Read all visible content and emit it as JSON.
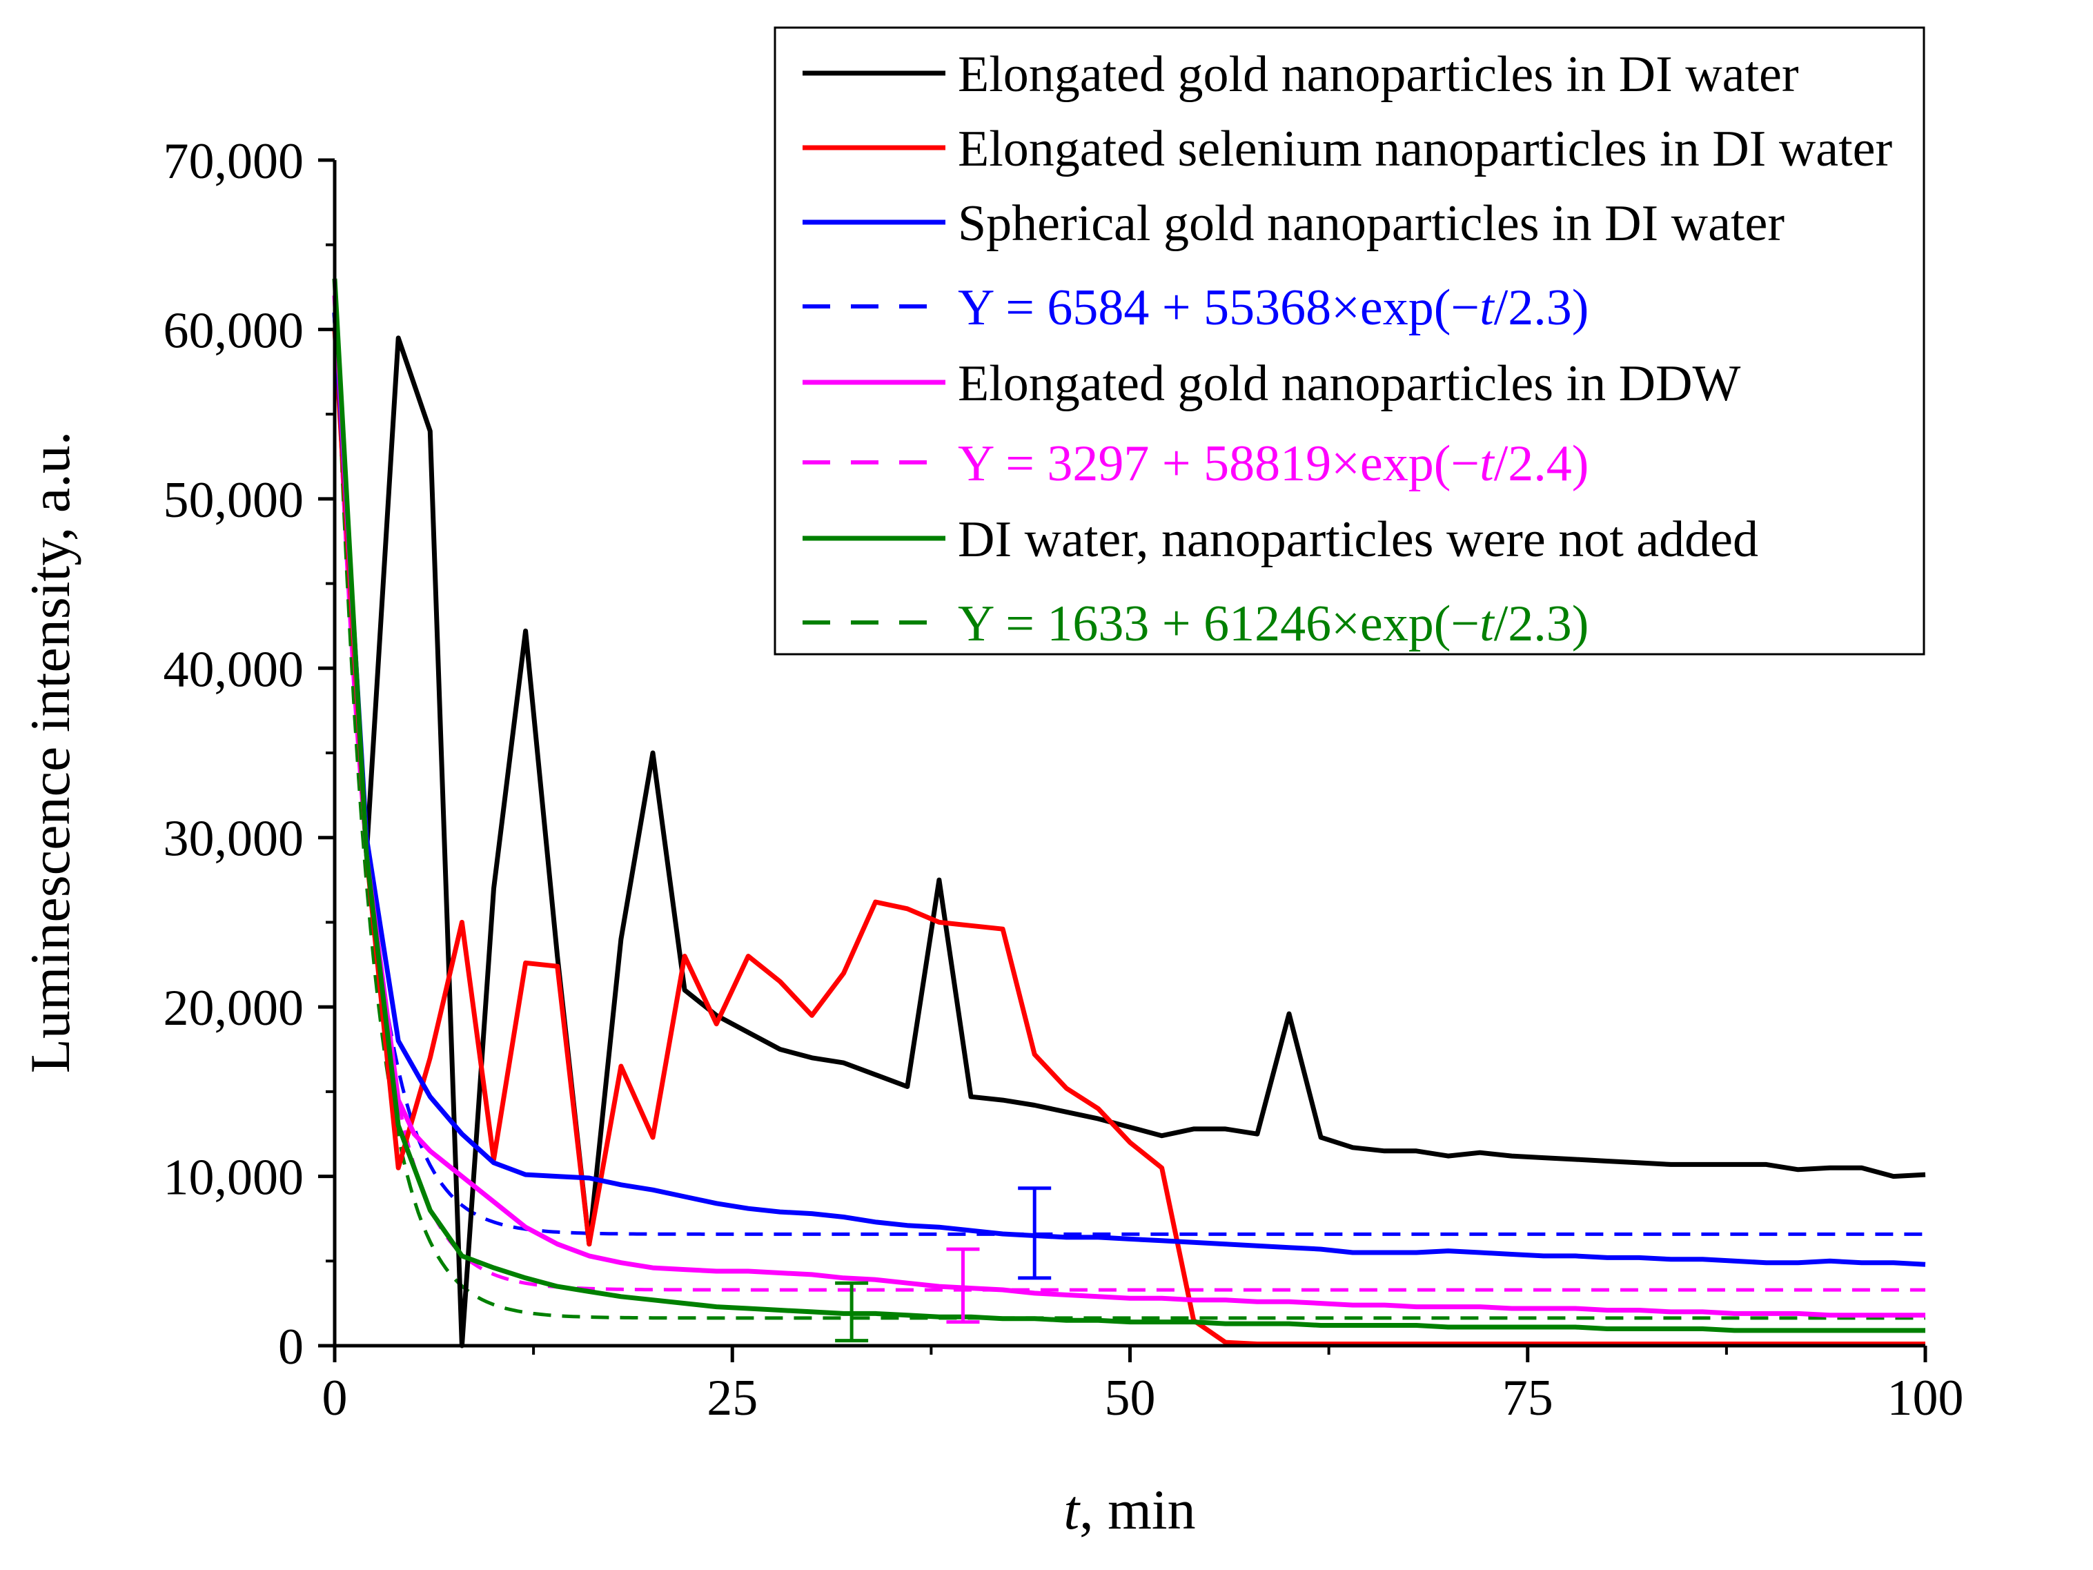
{
  "chart_data": {
    "type": "line",
    "title": "",
    "xlabel_italic": "t",
    "xlabel_rest": ", min",
    "ylabel": "Luminescence intensity, a.u.",
    "xlim": [
      0,
      100
    ],
    "ylim": [
      0,
      70000
    ],
    "xticks": [
      0,
      25,
      50,
      75,
      100
    ],
    "xtick_labels": [
      "0",
      "25",
      "50",
      "75",
      "100"
    ],
    "yticks": [
      0,
      10000,
      20000,
      30000,
      40000,
      50000,
      60000,
      70000
    ],
    "ytick_labels": [
      "0",
      "10,000",
      "20,000",
      "30,000",
      "40,000",
      "50,000",
      "60,000",
      "70,000"
    ],
    "grid": false,
    "legend_position": "top-right",
    "series": [
      {
        "name": "Elongated gold nanoparticles in DI water",
        "color": "#000000",
        "style": "solid",
        "x": [
          0,
          2,
          4,
          6,
          8,
          10,
          12,
          14,
          16,
          18,
          20,
          22,
          24,
          26,
          28,
          30,
          32,
          34,
          36,
          38,
          40,
          42,
          44,
          46,
          48,
          50,
          52,
          54,
          56,
          58,
          60,
          62,
          64,
          66,
          68,
          70,
          72,
          74,
          76,
          78,
          80,
          82,
          84,
          86,
          88,
          90,
          92,
          94,
          96,
          98,
          100
        ],
        "y": [
          61000,
          29000,
          59500,
          54000,
          0,
          27000,
          42200,
          23000,
          6000,
          24000,
          35000,
          21000,
          19500,
          18500,
          17500,
          17000,
          16700,
          16000,
          15300,
          27500,
          14700,
          14500,
          14200,
          13800,
          13400,
          12900,
          12400,
          12800,
          12800,
          12500,
          19600,
          12300,
          11700,
          11500,
          11500,
          11200,
          11400,
          11200,
          11100,
          11000,
          10900,
          10800,
          10700,
          10700,
          10700,
          10700,
          10400,
          10500,
          10500,
          10000,
          10100
        ]
      },
      {
        "name": "Elongated selenium nanoparticles in DI water",
        "color": "#ff0000",
        "style": "solid",
        "x": [
          0,
          2,
          4,
          6,
          8,
          10,
          12,
          14,
          16,
          18,
          20,
          22,
          24,
          26,
          28,
          30,
          32,
          34,
          36,
          38,
          40,
          42,
          44,
          46,
          48,
          50,
          52,
          54,
          56,
          58,
          60,
          62,
          64,
          66,
          68,
          70,
          72,
          74,
          76,
          78,
          80,
          82,
          84,
          86,
          88,
          90,
          92,
          94,
          96,
          98,
          100
        ],
        "y": [
          60000,
          29000,
          10500,
          17000,
          25000,
          11000,
          22600,
          22400,
          6000,
          16500,
          12300,
          23000,
          19000,
          23000,
          21500,
          19500,
          22000,
          26200,
          25800,
          25000,
          24800,
          24600,
          17200,
          15200,
          14000,
          12000,
          10500,
          1500,
          200,
          100,
          100,
          100,
          100,
          100,
          100,
          100,
          100,
          100,
          100,
          100,
          100,
          100,
          100,
          100,
          100,
          100,
          100,
          100,
          100,
          100,
          100
        ]
      },
      {
        "name": "Spherical gold nanoparticles in DI water",
        "color": "#0000ff",
        "style": "solid",
        "x": [
          0,
          2,
          4,
          6,
          8,
          10,
          12,
          14,
          16,
          18,
          20,
          22,
          24,
          26,
          28,
          30,
          32,
          34,
          36,
          38,
          40,
          42,
          44,
          46,
          48,
          50,
          52,
          54,
          56,
          58,
          60,
          62,
          64,
          66,
          68,
          70,
          72,
          74,
          76,
          78,
          80,
          82,
          84,
          86,
          88,
          90,
          92,
          94,
          96,
          98,
          100
        ],
        "y": [
          61000,
          30000,
          18000,
          14700,
          12500,
          10800,
          10100,
          10000,
          9900,
          9500,
          9200,
          8800,
          8400,
          8100,
          7900,
          7800,
          7600,
          7300,
          7100,
          7000,
          6800,
          6600,
          6500,
          6400,
          6400,
          6300,
          6200,
          6100,
          6000,
          5900,
          5800,
          5700,
          5500,
          5500,
          5500,
          5600,
          5500,
          5400,
          5300,
          5300,
          5200,
          5200,
          5100,
          5100,
          5000,
          4900,
          4900,
          5000,
          4900,
          4900,
          4800
        ]
      },
      {
        "name": "Y = 6584 + 55368×exp(−t/2.3)",
        "label_parts": [
          "Y = 6584 + 55368×exp(−",
          "t",
          "/2.3)"
        ],
        "color": "#0000ff",
        "style": "dashed",
        "fit": {
          "a": 6584,
          "b": 55368,
          "tau": 2.3
        },
        "x_start": 0,
        "x_end": 100
      },
      {
        "name": "Elongated gold nanoparticles in DDW",
        "color": "#ff00ff",
        "style": "solid",
        "x": [
          0,
          2,
          4,
          5,
          6,
          8,
          10,
          12,
          14,
          16,
          18,
          20,
          22,
          24,
          26,
          28,
          30,
          32,
          34,
          36,
          38,
          40,
          42,
          44,
          46,
          48,
          50,
          52,
          54,
          56,
          58,
          60,
          62,
          64,
          66,
          68,
          70,
          72,
          74,
          76,
          78,
          80,
          82,
          84,
          86,
          88,
          90,
          92,
          94,
          96,
          98,
          100
        ],
        "y": [
          62000,
          29000,
          14500,
          12500,
          11500,
          10000,
          8500,
          7000,
          6000,
          5300,
          4900,
          4600,
          4500,
          4400,
          4400,
          4300,
          4200,
          4000,
          3900,
          3700,
          3500,
          3400,
          3300,
          3100,
          3000,
          2900,
          2800,
          2800,
          2700,
          2700,
          2600,
          2600,
          2500,
          2400,
          2400,
          2300,
          2300,
          2300,
          2200,
          2200,
          2200,
          2100,
          2100,
          2000,
          2000,
          1900,
          1900,
          1900,
          1800,
          1800,
          1800,
          1800
        ]
      },
      {
        "name": "Y = 3297 + 58819×exp(−t/2.4)",
        "label_parts": [
          "Y = 3297 + 58819×exp(−",
          "t",
          "/2.4)"
        ],
        "color": "#ff00ff",
        "style": "dashed",
        "fit": {
          "a": 3297,
          "b": 58819,
          "tau": 2.4
        },
        "x_start": 0,
        "x_end": 100
      },
      {
        "name": "DI water, nanoparticles were not added",
        "color": "#008000",
        "style": "solid",
        "x": [
          0,
          2,
          4,
          6,
          8,
          10,
          12,
          14,
          16,
          18,
          20,
          22,
          24,
          26,
          28,
          30,
          32,
          34,
          36,
          38,
          40,
          42,
          44,
          46,
          48,
          50,
          52,
          54,
          56,
          58,
          60,
          62,
          64,
          66,
          68,
          70,
          72,
          74,
          76,
          78,
          80,
          82,
          84,
          86,
          88,
          90,
          92,
          94,
          96,
          98,
          100
        ],
        "y": [
          63000,
          29000,
          13000,
          8000,
          5300,
          4600,
          4000,
          3500,
          3200,
          2900,
          2700,
          2500,
          2300,
          2200,
          2100,
          2000,
          1900,
          1900,
          1800,
          1700,
          1700,
          1600,
          1600,
          1500,
          1500,
          1400,
          1400,
          1400,
          1300,
          1300,
          1300,
          1200,
          1200,
          1200,
          1200,
          1100,
          1100,
          1100,
          1100,
          1100,
          1000,
          1000,
          1000,
          1000,
          900,
          900,
          900,
          900,
          900,
          900,
          900
        ]
      },
      {
        "name": "Y = 1633 + 61246×exp(−t/2.3)",
        "label_parts": [
          "Y = 1633 + 61246×exp(−",
          "t",
          "/2.3)"
        ],
        "color": "#008000",
        "style": "dashed",
        "fit": {
          "a": 1633,
          "b": 61246,
          "tau": 2.3
        },
        "x_start": 0,
        "x_end": 100
      }
    ],
    "error_bars": [
      {
        "series": "Spherical gold nanoparticles in DI water",
        "color": "#0000ff",
        "x": 44,
        "y_low": 4000,
        "y_high": 9300
      },
      {
        "series": "Elongated gold nanoparticles in DDW",
        "color": "#ff00ff",
        "x": 39.5,
        "y_low": 1400,
        "y_high": 5700
      },
      {
        "series": "DI water, nanoparticles were not added",
        "color": "#008000",
        "x": 32.5,
        "y_low": 300,
        "y_high": 3700
      }
    ]
  }
}
